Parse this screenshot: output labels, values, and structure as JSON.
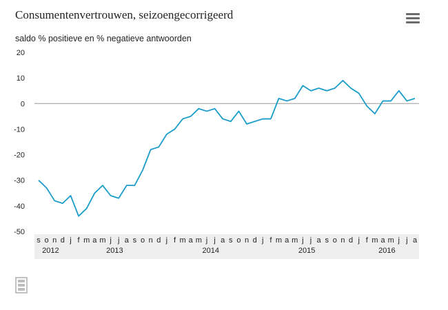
{
  "chart_data": {
    "type": "line",
    "title": "Consumentenvertrouwen, seizoengecorrigeerd",
    "ylabel": "saldo % positieve en % negatieve antwoorden",
    "ylim": [
      -50,
      20
    ],
    "yticks": [
      20,
      10,
      0,
      -10,
      -20,
      -30,
      -40,
      -50
    ],
    "grid": false,
    "legend": "none",
    "color": "#1a9cc9",
    "month_labels": [
      "s",
      "o",
      "n",
      "d",
      "j",
      "f",
      "m",
      "a",
      "m",
      "j",
      "j",
      "a",
      "s",
      "o",
      "n",
      "d",
      "j",
      "f",
      "m",
      "a",
      "m",
      "j",
      "j",
      "a",
      "s",
      "o",
      "n",
      "d",
      "j",
      "f",
      "m",
      "a",
      "m",
      "j",
      "j",
      "a",
      "s",
      "o",
      "n",
      "d",
      "j",
      "f",
      "m",
      "a",
      "m",
      "j",
      "j",
      "a"
    ],
    "year_labels": [
      {
        "label": "2012",
        "month_index": 1.5
      },
      {
        "label": "2013",
        "month_index": 9.5
      },
      {
        "label": "2014",
        "month_index": 21.5
      },
      {
        "label": "2015",
        "month_index": 33.5
      },
      {
        "label": "2016",
        "month_index": 43.5
      }
    ],
    "values": [
      -30,
      -33,
      -38,
      -39,
      -36,
      -44,
      -41,
      -35,
      -32,
      -36,
      -37,
      -32,
      -32,
      -26,
      -18,
      -17,
      -12,
      -10,
      -6,
      -5,
      -2,
      -3,
      -2,
      -6,
      -7,
      -3,
      -8,
      -7,
      -6,
      -6,
      2,
      1,
      2,
      7,
      5,
      6,
      5,
      6,
      9,
      6,
      4,
      -1,
      -4,
      1,
      1,
      5,
      1,
      2
    ]
  }
}
